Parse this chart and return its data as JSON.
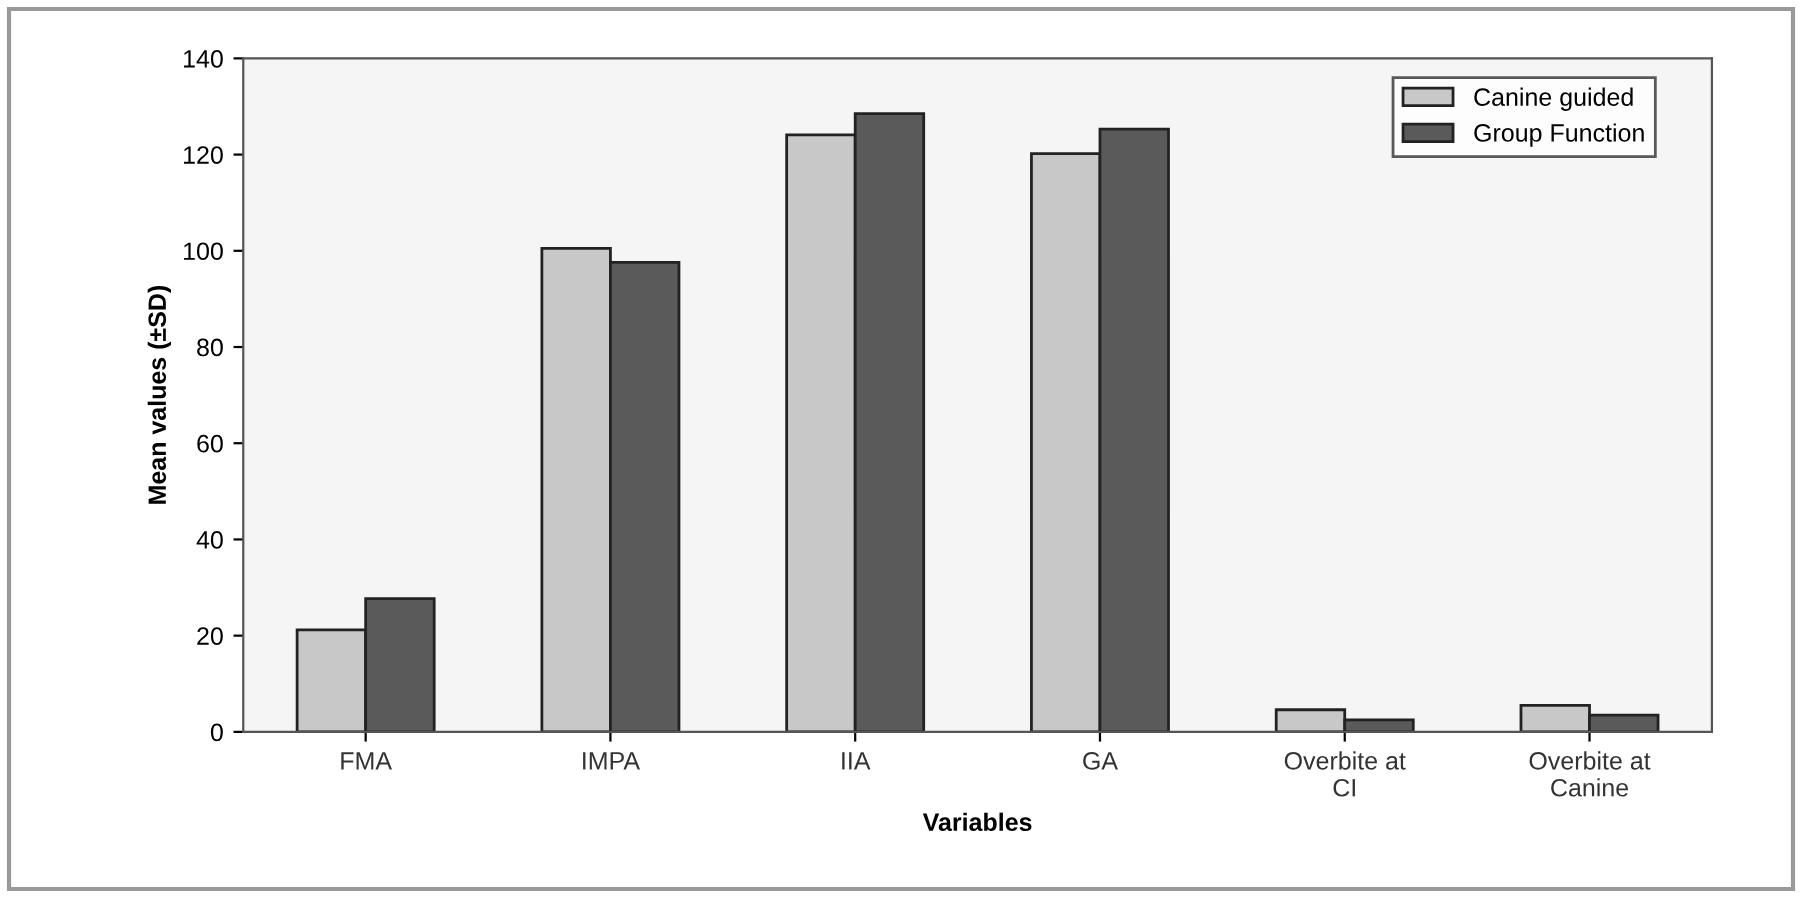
{
  "chart_data": {
    "type": "bar",
    "categories": [
      "FMA",
      "IMPA",
      "IIA",
      "GA",
      "Overbite at\nCI",
      "Overbite at\nCanine"
    ],
    "series": [
      {
        "name": "Canine guided",
        "color": "#c8c8c8",
        "values": [
          21.2,
          100.5,
          124.1,
          120.2,
          4.6,
          5.5
        ]
      },
      {
        "name": "Group Function",
        "color": "#5a5a5a",
        "values": [
          27.7,
          97.6,
          128.5,
          125.3,
          2.5,
          3.5
        ]
      }
    ],
    "xlabel": "Variables",
    "ylabel": "Mean values (±SD)",
    "ylim": [
      0,
      140
    ],
    "yticks": [
      0,
      20,
      40,
      60,
      80,
      100,
      120,
      140
    ],
    "grid": false,
    "legend": "top right"
  }
}
